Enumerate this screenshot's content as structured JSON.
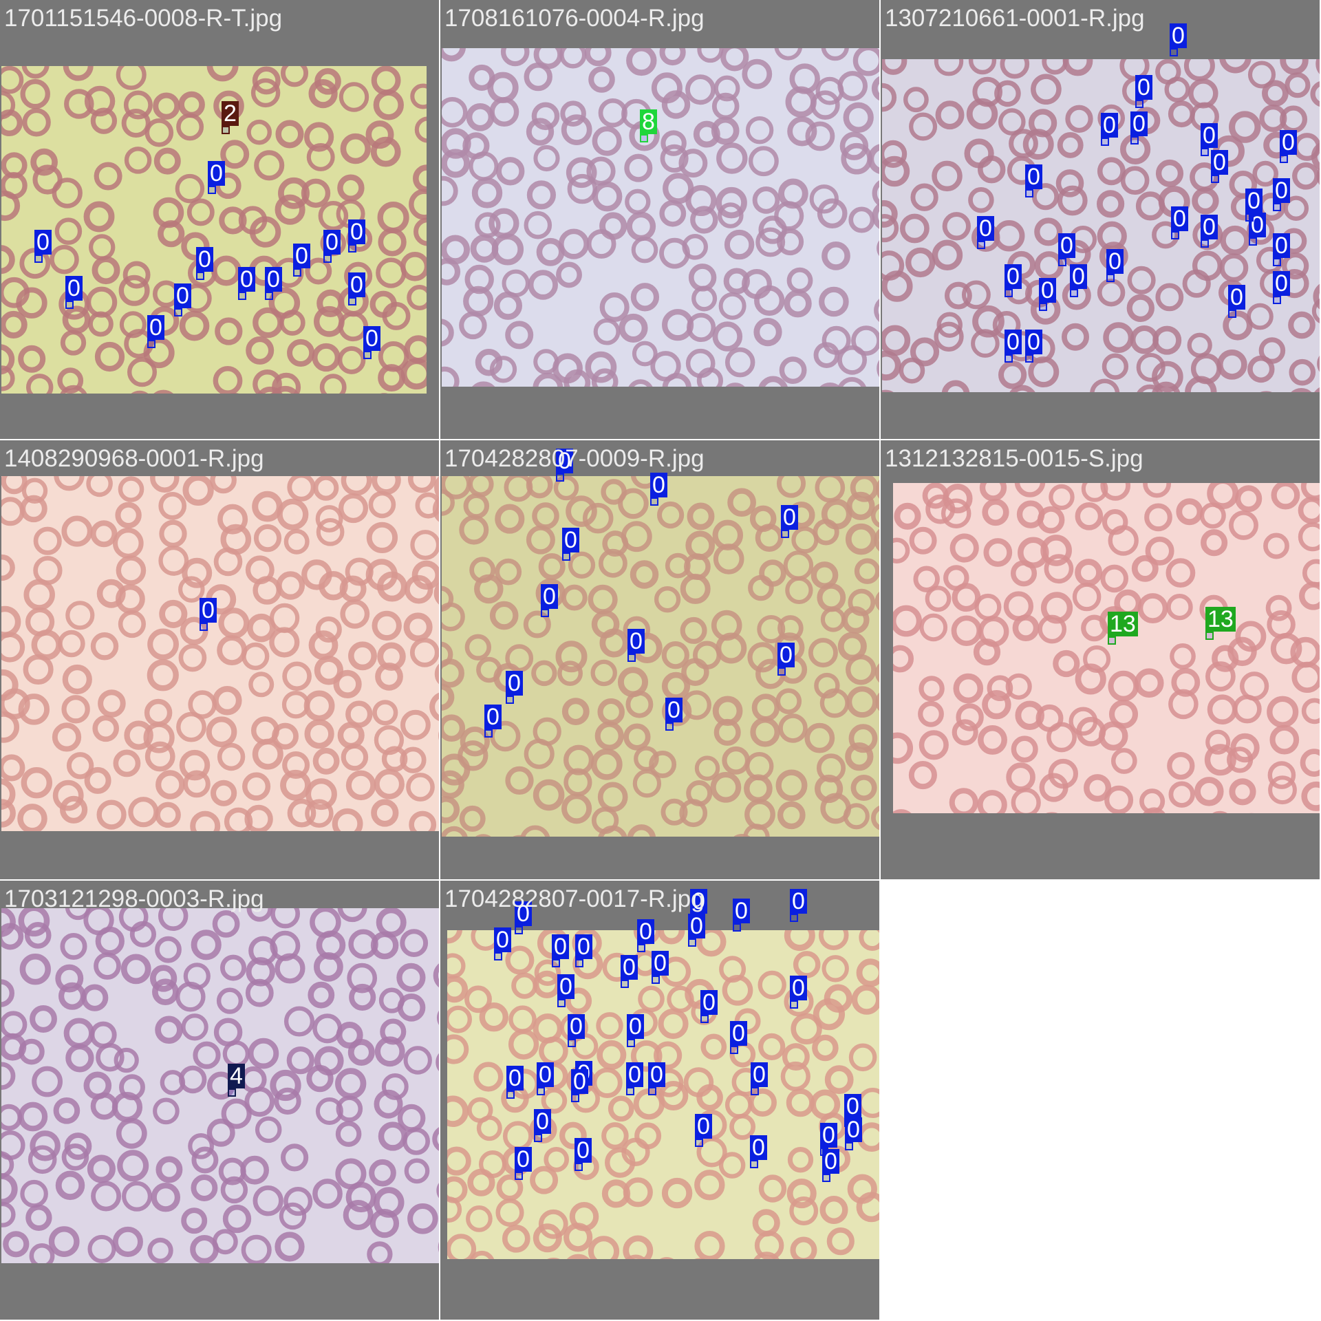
{
  "grid": {
    "tiles": [
      {
        "title": "1701151546-0008-R-T.jpg",
        "bg": "#dcdfa0",
        "cell": "#b9787a",
        "wbc": "#6b3f8c",
        "detections": [
          {
            "label": "2",
            "color": "#5a1a10"
          },
          {
            "label": "0",
            "color": "#0a1fe0"
          },
          {
            "label": "0",
            "color": "#0a1fe0"
          },
          {
            "label": "0",
            "color": "#0a1fe0"
          },
          {
            "label": "0",
            "color": "#0a1fe0"
          },
          {
            "label": "0",
            "color": "#0a1fe0"
          },
          {
            "label": "0",
            "color": "#0a1fe0"
          },
          {
            "label": "0",
            "color": "#0a1fe0"
          },
          {
            "label": "0",
            "color": "#0a1fe0"
          },
          {
            "label": "0",
            "color": "#0a1fe0"
          },
          {
            "label": "0",
            "color": "#0a1fe0"
          },
          {
            "label": "0",
            "color": "#0a1fe0"
          },
          {
            "label": "0",
            "color": "#0a1fe0"
          },
          {
            "label": "0",
            "color": "#0a1fe0"
          }
        ]
      },
      {
        "title": "1708161076-0004-R.jpg",
        "bg": "#dcdcec",
        "cell": "#b08aa8",
        "wbc": "#5a3a90",
        "detections": [
          {
            "label": "8",
            "color": "#1fd63a"
          }
        ]
      },
      {
        "title": "1307210661-0001-R.jpg",
        "bg": "#d9d5e3",
        "cell": "#b07a8e",
        "wbc": "#3d2a78",
        "detections": [
          {
            "label": "0",
            "color": "#0a1fe0"
          },
          {
            "label": "0",
            "color": "#0a1fe0"
          },
          {
            "label": "0",
            "color": "#0a1fe0"
          },
          {
            "label": "0",
            "color": "#0a1fe0"
          },
          {
            "label": "0",
            "color": "#0a1fe0"
          },
          {
            "label": "0",
            "color": "#0a1fe0"
          },
          {
            "label": "0",
            "color": "#0a1fe0"
          },
          {
            "label": "0",
            "color": "#0a1fe0"
          },
          {
            "label": "0",
            "color": "#0a1fe0"
          },
          {
            "label": "0",
            "color": "#0a1fe0"
          },
          {
            "label": "0",
            "color": "#0a1fe0"
          },
          {
            "label": "0",
            "color": "#0a1fe0"
          },
          {
            "label": "0",
            "color": "#0a1fe0"
          },
          {
            "label": "0",
            "color": "#0a1fe0"
          },
          {
            "label": "0",
            "color": "#0a1fe0"
          },
          {
            "label": "0",
            "color": "#0a1fe0"
          },
          {
            "label": "0",
            "color": "#0a1fe0"
          },
          {
            "label": "0",
            "color": "#0a1fe0"
          },
          {
            "label": "0",
            "color": "#0a1fe0"
          },
          {
            "label": "0",
            "color": "#0a1fe0"
          },
          {
            "label": "0",
            "color": "#0a1fe0"
          },
          {
            "label": "0",
            "color": "#0a1fe0"
          },
          {
            "label": "0",
            "color": "#0a1fe0"
          },
          {
            "label": "0",
            "color": "#0a1fe0"
          }
        ]
      },
      {
        "title": "1408290968-0001-R.jpg",
        "bg": "#f6dcd2",
        "cell": "#d79890",
        "wbc": "#d79890",
        "detections": [
          {
            "label": "0",
            "color": "#0a1fe0"
          }
        ]
      },
      {
        "title": "1704282807-0009-R.jpg",
        "bg": "#d8d6a2",
        "cell": "#c79482",
        "wbc": "#5b3d8f",
        "detections": [
          {
            "label": "0",
            "color": "#0a1fe0"
          },
          {
            "label": "0",
            "color": "#0a1fe0"
          },
          {
            "label": "0",
            "color": "#0a1fe0"
          },
          {
            "label": "0",
            "color": "#0a1fe0"
          },
          {
            "label": "0",
            "color": "#0a1fe0"
          },
          {
            "label": "0",
            "color": "#0a1fe0"
          },
          {
            "label": "0",
            "color": "#0a1fe0"
          },
          {
            "label": "0",
            "color": "#0a1fe0"
          },
          {
            "label": "0",
            "color": "#0a1fe0"
          },
          {
            "label": "0",
            "color": "#0a1fe0"
          }
        ]
      },
      {
        "title": "1312132815-0015-S.jpg",
        "bg": "#f6d8d4",
        "cell": "#d69092",
        "wbc": "#5a3a80",
        "detections": [
          {
            "label": "13",
            "color": "#1fa81f"
          },
          {
            "label": "13",
            "color": "#1fa81f"
          }
        ]
      },
      {
        "title": "1703121298-0003-R.jpg",
        "bg": "#ddd6e6",
        "cell": "#a87aa8",
        "wbc": "#5a2a90",
        "detections": [
          {
            "label": "4",
            "color": "#101a50"
          }
        ]
      },
      {
        "title": "1704282807-0017-R.jpg",
        "bg": "#e6e5b6",
        "cell": "#d89a8c",
        "wbc": "#6a4a80",
        "detections": [
          {
            "label": "0",
            "color": "#0a1fe0"
          },
          {
            "label": "0",
            "color": "#0a1fe0"
          },
          {
            "label": "0",
            "color": "#0a1fe0"
          },
          {
            "label": "0",
            "color": "#0a1fe0"
          },
          {
            "label": "0",
            "color": "#0a1fe0"
          },
          {
            "label": "0",
            "color": "#0a1fe0"
          },
          {
            "label": "0",
            "color": "#0a1fe0"
          },
          {
            "label": "0",
            "color": "#0a1fe0"
          },
          {
            "label": "0",
            "color": "#0a1fe0"
          },
          {
            "label": "0",
            "color": "#0a1fe0"
          },
          {
            "label": "0",
            "color": "#0a1fe0"
          },
          {
            "label": "0",
            "color": "#0a1fe0"
          },
          {
            "label": "0",
            "color": "#0a1fe0"
          },
          {
            "label": "0",
            "color": "#0a1fe0"
          },
          {
            "label": "0",
            "color": "#0a1fe0"
          },
          {
            "label": "0",
            "color": "#0a1fe0"
          },
          {
            "label": "0",
            "color": "#0a1fe0"
          },
          {
            "label": "0",
            "color": "#0a1fe0"
          },
          {
            "label": "0",
            "color": "#0a1fe0"
          },
          {
            "label": "0",
            "color": "#0a1fe0"
          },
          {
            "label": "0",
            "color": "#0a1fe0"
          },
          {
            "label": "0",
            "color": "#0a1fe0"
          },
          {
            "label": "0",
            "color": "#0a1fe0"
          },
          {
            "label": "0",
            "color": "#0a1fe0"
          },
          {
            "label": "0",
            "color": "#0a1fe0"
          },
          {
            "label": "0",
            "color": "#0a1fe0"
          },
          {
            "label": "0",
            "color": "#0a1fe0"
          },
          {
            "label": "0",
            "color": "#0a1fe0"
          },
          {
            "label": "0",
            "color": "#0a1fe0"
          },
          {
            "label": "0",
            "color": "#0a1fe0"
          },
          {
            "label": "0",
            "color": "#0a1fe0"
          },
          {
            "label": "0",
            "color": "#0a1fe0"
          },
          {
            "label": "0",
            "color": "#0a1fe0"
          }
        ]
      }
    ]
  }
}
